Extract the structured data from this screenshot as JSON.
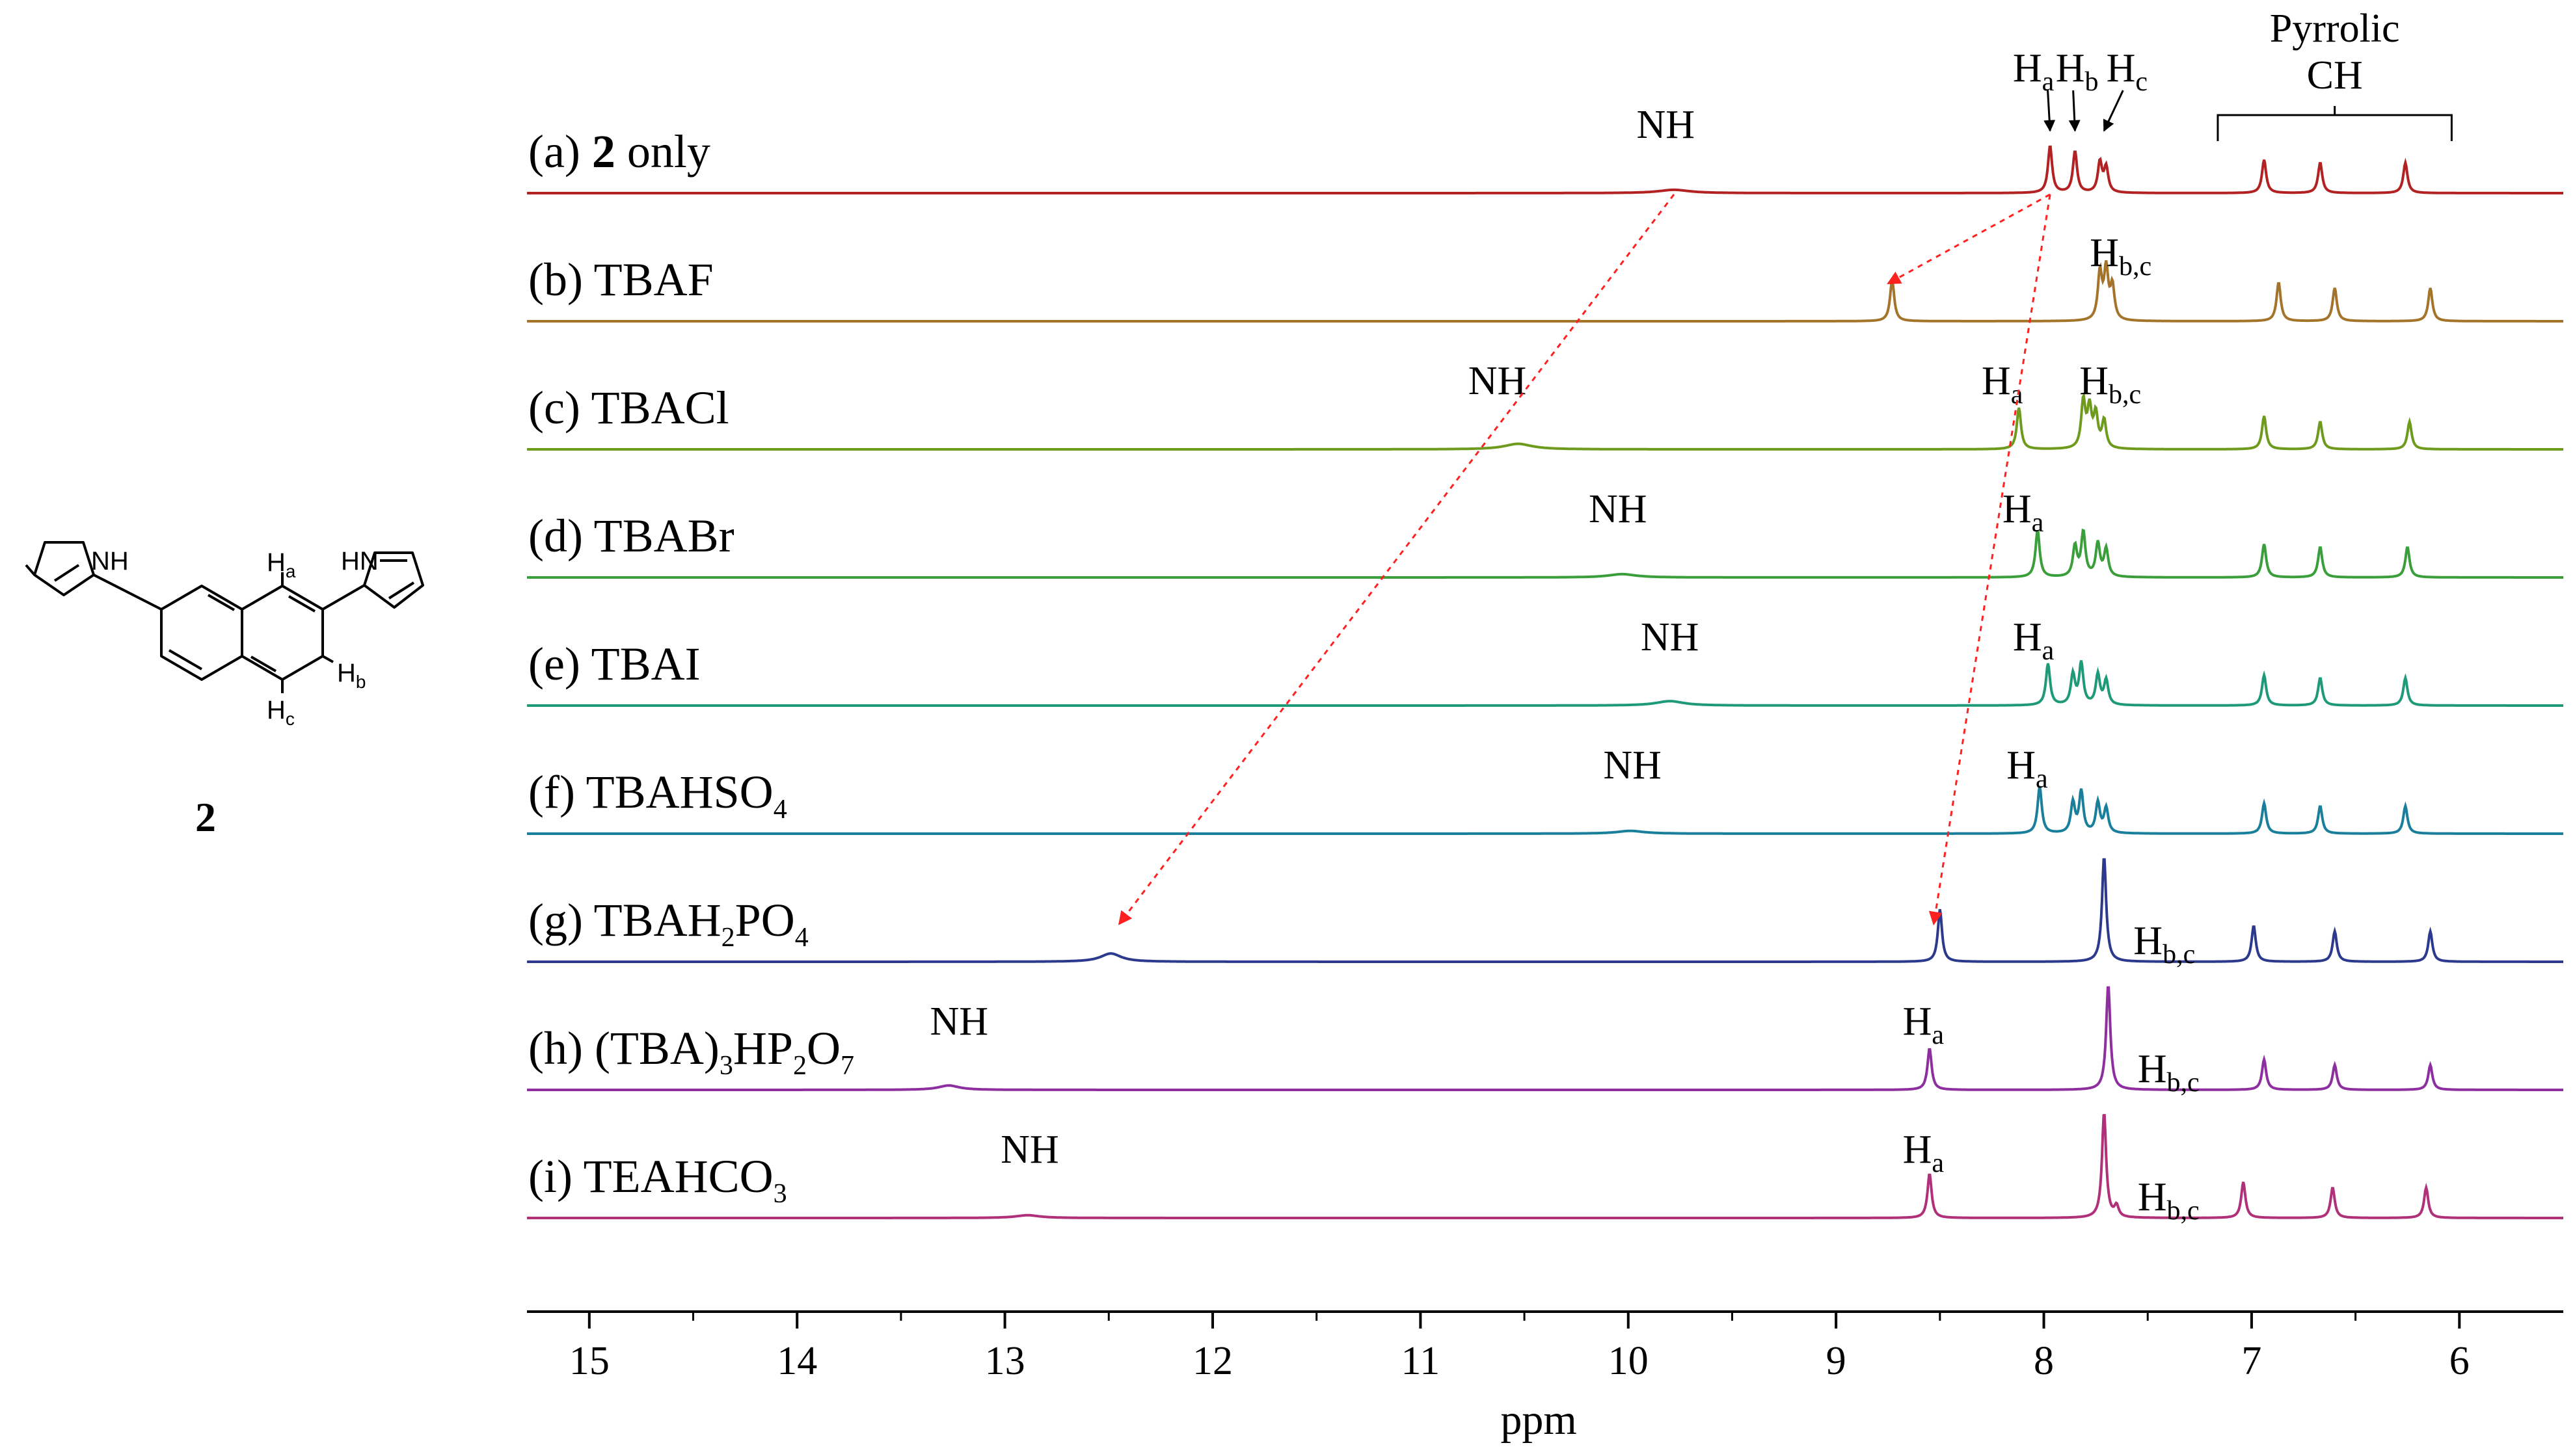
{
  "chart_data": {
    "type": "line",
    "title": "",
    "xlabel": "ppm",
    "ylabel": "",
    "xlim": [
      15.3,
      5.5
    ],
    "x_reversed": true,
    "x_ticks": [
      15,
      14,
      13,
      12,
      11,
      10,
      9,
      8,
      7,
      6
    ],
    "grid": false,
    "series": [
      {
        "id": "a",
        "label_prefix": "(a) ",
        "label_bold": "2",
        "label_rest": " only",
        "color": "#b22222",
        "peaks": [
          [
            9.78,
            0.06,
            0.09
          ],
          [
            7.97,
            0.85,
            0.012
          ],
          [
            7.85,
            0.75,
            0.012
          ],
          [
            7.73,
            0.55,
            0.012
          ],
          [
            7.7,
            0.45,
            0.012
          ],
          [
            6.94,
            0.6,
            0.012
          ],
          [
            6.67,
            0.55,
            0.012
          ],
          [
            6.26,
            0.55,
            0.012
          ]
        ]
      },
      {
        "id": "b",
        "label_prefix": "(b) ",
        "label_rest": "TBAF",
        "color": "#a3742a",
        "peaks": [
          [
            8.73,
            0.75,
            0.012
          ],
          [
            7.73,
            0.85,
            0.012
          ],
          [
            7.7,
            0.9,
            0.012
          ],
          [
            7.67,
            0.6,
            0.012
          ],
          [
            6.87,
            0.7,
            0.012
          ],
          [
            6.6,
            0.6,
            0.012
          ],
          [
            6.14,
            0.6,
            0.012
          ]
        ]
      },
      {
        "id": "c",
        "label_prefix": "(c) ",
        "label_rest": "TBACl",
        "color": "#6e9a1e",
        "peaks": [
          [
            10.53,
            0.1,
            0.08
          ],
          [
            8.12,
            0.75,
            0.012
          ],
          [
            7.81,
            0.85,
            0.012
          ],
          [
            7.78,
            0.7,
            0.012
          ],
          [
            7.75,
            0.6,
            0.012
          ],
          [
            7.71,
            0.5,
            0.012
          ],
          [
            6.94,
            0.6,
            0.012
          ],
          [
            6.67,
            0.5,
            0.012
          ],
          [
            6.24,
            0.5,
            0.012
          ]
        ]
      },
      {
        "id": "d",
        "label_prefix": "(d) ",
        "label_rest": "TBABr",
        "color": "#3a9f3a",
        "peaks": [
          [
            10.03,
            0.06,
            0.08
          ],
          [
            8.03,
            0.85,
            0.012
          ],
          [
            7.85,
            0.55,
            0.012
          ],
          [
            7.81,
            0.8,
            0.012
          ],
          [
            7.74,
            0.6,
            0.012
          ],
          [
            7.7,
            0.5,
            0.012
          ],
          [
            6.94,
            0.6,
            0.012
          ],
          [
            6.67,
            0.55,
            0.012
          ],
          [
            6.25,
            0.55,
            0.012
          ]
        ]
      },
      {
        "id": "e",
        "label_prefix": "(e) ",
        "label_rest": "TBAI",
        "color": "#1f9a78",
        "peaks": [
          [
            9.8,
            0.08,
            0.08
          ],
          [
            7.98,
            0.75,
            0.012
          ],
          [
            7.86,
            0.55,
            0.012
          ],
          [
            7.82,
            0.75,
            0.012
          ],
          [
            7.74,
            0.55,
            0.012
          ],
          [
            7.7,
            0.45,
            0.012
          ],
          [
            6.94,
            0.55,
            0.012
          ],
          [
            6.67,
            0.5,
            0.012
          ],
          [
            6.26,
            0.5,
            0.012
          ]
        ]
      },
      {
        "id": "f",
        "label_prefix": "(f) ",
        "label_rest": "TBAHSO",
        "label_sub": "4",
        "color": "#1a7f9a",
        "peaks": [
          [
            9.99,
            0.05,
            0.08
          ],
          [
            8.02,
            0.85,
            0.012
          ],
          [
            7.86,
            0.55,
            0.012
          ],
          [
            7.82,
            0.75,
            0.012
          ],
          [
            7.74,
            0.55,
            0.012
          ],
          [
            7.7,
            0.45,
            0.012
          ],
          [
            6.94,
            0.55,
            0.012
          ],
          [
            6.67,
            0.5,
            0.012
          ],
          [
            6.26,
            0.5,
            0.012
          ]
        ]
      },
      {
        "id": "g",
        "label_prefix": "(g) ",
        "label_rest": "TBAH",
        "label_sub": "2",
        "label_tail": "PO",
        "label_sub2": "4",
        "color": "#2b3a8c",
        "peaks": [
          [
            12.49,
            0.15,
            0.06
          ],
          [
            8.5,
            0.95,
            0.012
          ],
          [
            7.71,
            1.9,
            0.012
          ],
          [
            6.99,
            0.65,
            0.012
          ],
          [
            6.6,
            0.55,
            0.012
          ],
          [
            6.14,
            0.55,
            0.012
          ]
        ]
      },
      {
        "id": "h",
        "label_prefix": "(h) ",
        "label_rest": "(TBA)",
        "label_sub": "3",
        "label_tail": "HP",
        "label_sub2": "2",
        "label_tail2": "O",
        "label_sub3": "7",
        "color": "#8e2fa0",
        "peaks": [
          [
            13.27,
            0.08,
            0.06
          ],
          [
            8.55,
            0.75,
            0.012
          ],
          [
            7.69,
            1.9,
            0.012
          ],
          [
            6.94,
            0.55,
            0.012
          ],
          [
            6.6,
            0.45,
            0.012
          ],
          [
            6.14,
            0.45,
            0.012
          ]
        ]
      },
      {
        "id": "i",
        "label_prefix": "(i) ",
        "label_rest": "TEAHCO",
        "label_sub": "3",
        "color": "#b0307a",
        "peaks": [
          [
            12.89,
            0.05,
            0.07
          ],
          [
            8.55,
            0.8,
            0.012
          ],
          [
            7.71,
            1.9,
            0.012
          ],
          [
            7.65,
            0.2,
            0.012
          ],
          [
            7.04,
            0.65,
            0.012
          ],
          [
            6.61,
            0.55,
            0.012
          ],
          [
            6.16,
            0.55,
            0.012
          ]
        ]
      }
    ],
    "annotations": [
      {
        "trace": 0,
        "x": 9.82,
        "main": "NH"
      },
      {
        "trace": 0,
        "x": 8.05,
        "main": "H",
        "sub": "a",
        "arrow_to": 7.97
      },
      {
        "trace": 0,
        "x": 7.84,
        "main": "H",
        "sub": "b",
        "arrow_to": 7.85
      },
      {
        "trace": 0,
        "x": 7.6,
        "main": "H",
        "sub": "c",
        "arrow_to": 7.71
      },
      {
        "trace": 1,
        "x": 7.63,
        "main": "H",
        "sub": "b,c"
      },
      {
        "trace": 2,
        "x": 10.63,
        "main": "NH"
      },
      {
        "trace": 2,
        "x": 8.2,
        "main": "H",
        "sub": "a"
      },
      {
        "trace": 2,
        "x": 7.68,
        "main": "H",
        "sub": "b,c"
      },
      {
        "trace": 3,
        "x": 10.05,
        "main": "NH"
      },
      {
        "trace": 3,
        "x": 8.1,
        "main": "H",
        "sub": "a"
      },
      {
        "trace": 4,
        "x": 9.8,
        "main": "NH"
      },
      {
        "trace": 4,
        "x": 8.05,
        "main": "H",
        "sub": "a"
      },
      {
        "trace": 5,
        "x": 9.98,
        "main": "NH"
      },
      {
        "trace": 5,
        "x": 8.08,
        "main": "H",
        "sub": "a"
      },
      {
        "trace": 6,
        "x": 7.42,
        "main": "H",
        "sub": "b,c",
        "side": true
      },
      {
        "trace": 7,
        "x": 13.22,
        "main": "NH"
      },
      {
        "trace": 7,
        "x": 8.58,
        "main": "H",
        "sub": "a"
      },
      {
        "trace": 7,
        "x": 7.4,
        "main": "H",
        "sub": "b,c",
        "side": true
      },
      {
        "trace": 8,
        "x": 12.88,
        "main": "NH"
      },
      {
        "trace": 8,
        "x": 8.58,
        "main": "H",
        "sub": "a"
      },
      {
        "trace": 8,
        "x": 7.4,
        "main": "H",
        "sub": "b,c",
        "side": true
      }
    ],
    "group_label": {
      "line1": "Pyrrolic",
      "line2": "CH",
      "x_from": 7.05,
      "x_to": 6.15
    },
    "shift_arrows": [
      {
        "from_trace": 0,
        "from_x": 7.97,
        "to_trace": 1,
        "to_x": 8.75
      },
      {
        "from_trace": 0,
        "from_x": 7.97,
        "to_trace": 6,
        "to_x": 8.53
      },
      {
        "from_trace": 0,
        "from_x": 9.78,
        "to_trace": 6,
        "to_x": 12.45
      }
    ]
  },
  "molecule": {
    "compound_number": "2",
    "labels": {
      "nh_left": "NH",
      "hn_right": "HN",
      "ha": {
        "main": "H",
        "sub": "a"
      },
      "hb": {
        "main": "H",
        "sub": "b"
      },
      "hc": {
        "main": "H",
        "sub": "c"
      }
    }
  }
}
